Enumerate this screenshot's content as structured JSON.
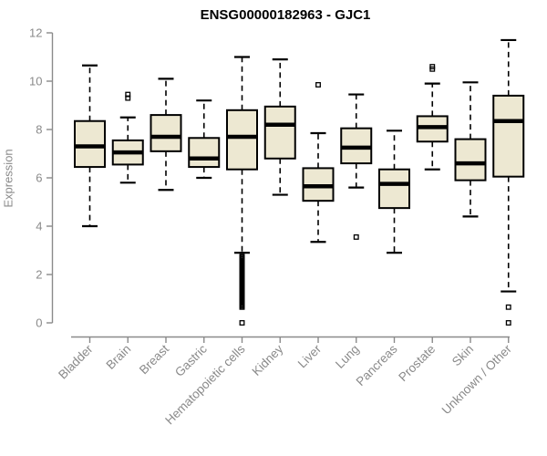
{
  "title": "ENSG00000182963 - GJC1",
  "colors": {
    "background": "#ffffff",
    "box_fill": "#ede8d2",
    "box_stroke": "#000000",
    "median": "#000000",
    "whisker": "#000000",
    "axis": "#8a8a8a",
    "tick_label": "#8a8a8a",
    "title": "#000000"
  },
  "chart_data": {
    "type": "boxplot",
    "title": "ENSG00000182963 - GJC1",
    "xlabel": "",
    "ylabel": "Expression",
    "ylim": [
      0,
      12
    ],
    "yticks": [
      0,
      2,
      4,
      6,
      8,
      10,
      12
    ],
    "grid": false,
    "legend": false,
    "categories": [
      "Bladder",
      "Brain",
      "Breast",
      "Gastric",
      "Hematopoietic cells",
      "Kidney",
      "Liver",
      "Lung",
      "Pancreas",
      "Prostate",
      "Skin",
      "Unknown / Other"
    ],
    "series": [
      {
        "name": "Bladder",
        "low": 4.0,
        "q1": 6.45,
        "median": 7.3,
        "q3": 8.35,
        "high": 10.65,
        "outliers": []
      },
      {
        "name": "Brain",
        "low": 5.8,
        "q1": 6.55,
        "median": 7.05,
        "q3": 7.55,
        "high": 8.5,
        "outliers": [
          9.3,
          9.45
        ]
      },
      {
        "name": "Breast",
        "low": 5.5,
        "q1": 7.1,
        "median": 7.7,
        "q3": 8.6,
        "high": 10.1,
        "outliers": []
      },
      {
        "name": "Gastric",
        "low": 6.0,
        "q1": 6.45,
        "median": 6.8,
        "q3": 7.65,
        "high": 9.2,
        "outliers": []
      },
      {
        "name": "Hematopoietic cells",
        "low": 2.9,
        "q1": 6.35,
        "median": 7.7,
        "q3": 8.8,
        "high": 11.0,
        "outliers": [
          2.75,
          2.7,
          2.65,
          2.6,
          2.55,
          2.5,
          2.45,
          2.4,
          2.35,
          2.3,
          2.25,
          2.2,
          2.15,
          2.1,
          2.05,
          2.0,
          1.95,
          1.9,
          1.85,
          1.8,
          1.75,
          1.7,
          1.65,
          1.6,
          1.55,
          1.5,
          1.45,
          1.4,
          1.35,
          1.3,
          1.25,
          1.2,
          1.15,
          1.1,
          1.05,
          1.0,
          0.95,
          0.9,
          0.85,
          0.8,
          0.75,
          0.7,
          0.65,
          0.0
        ]
      },
      {
        "name": "Kidney",
        "low": 5.3,
        "q1": 6.8,
        "median": 8.2,
        "q3": 8.95,
        "high": 10.9,
        "outliers": []
      },
      {
        "name": "Liver",
        "low": 3.35,
        "q1": 5.05,
        "median": 5.65,
        "q3": 6.4,
        "high": 7.85,
        "outliers": [
          9.85
        ]
      },
      {
        "name": "Lung",
        "low": 5.6,
        "q1": 6.6,
        "median": 7.25,
        "q3": 8.05,
        "high": 9.45,
        "outliers": [
          3.55
        ]
      },
      {
        "name": "Pancreas",
        "low": 2.9,
        "q1": 4.75,
        "median": 5.75,
        "q3": 6.35,
        "high": 7.95,
        "outliers": []
      },
      {
        "name": "Prostate",
        "low": 6.35,
        "q1": 7.5,
        "median": 8.1,
        "q3": 8.55,
        "high": 9.9,
        "outliers": [
          10.5,
          10.6
        ]
      },
      {
        "name": "Skin",
        "low": 4.4,
        "q1": 5.9,
        "median": 6.6,
        "q3": 7.6,
        "high": 9.95,
        "outliers": []
      },
      {
        "name": "Unknown / Other",
        "low": 1.3,
        "q1": 6.05,
        "median": 8.35,
        "q3": 9.4,
        "high": 11.7,
        "outliers": [
          0.65,
          0.0
        ]
      }
    ]
  }
}
